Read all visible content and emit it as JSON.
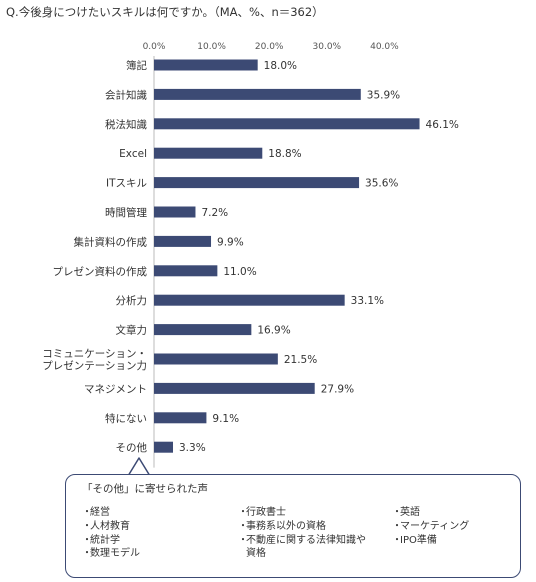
{
  "question": "Q.今後身につけたいスキルは何ですか。（MA、%、n＝362）",
  "chart_data": {
    "type": "bar",
    "orientation": "horizontal",
    "categories": [
      "簿記",
      "会計知識",
      "税法知識",
      "Excel",
      "ITスキル",
      "時間管理",
      "集計資料の作成",
      "プレゼン資料の作成",
      "分析力",
      "文章力",
      "コミュニケーション・\nプレゼンテーション力",
      "マネジメント",
      "特にない",
      "その他"
    ],
    "values": [
      18.0,
      35.9,
      46.1,
      18.8,
      35.6,
      7.2,
      9.9,
      11.0,
      33.1,
      16.9,
      21.5,
      27.9,
      9.1,
      3.3
    ],
    "value_labels": [
      "18.0%",
      "35.9%",
      "46.1%",
      "18.8%",
      "35.6%",
      "7.2%",
      "9.9%",
      "11.0%",
      "33.1%",
      "16.9%",
      "21.5%",
      "27.9%",
      "9.1%",
      "3.3%"
    ],
    "ticks": [
      "0.0%",
      "10.0%",
      "20.0%",
      "30.0%",
      "40.0%"
    ],
    "xlim": [
      0,
      45
    ],
    "axis_position": "top",
    "grid": false,
    "bar_color": "#3c4a74"
  },
  "others": {
    "title": "「その他」に寄せられた声",
    "border_color": "#3c4a74",
    "columns": [
      [
        "経営",
        "人材教育",
        "統計学",
        "数理モデル"
      ],
      [
        "行政書士",
        "事務系以外の資格",
        "不動産に関する法律知識や\n資格"
      ],
      [
        "英語",
        "マーケティング",
        "IPO準備"
      ]
    ]
  }
}
